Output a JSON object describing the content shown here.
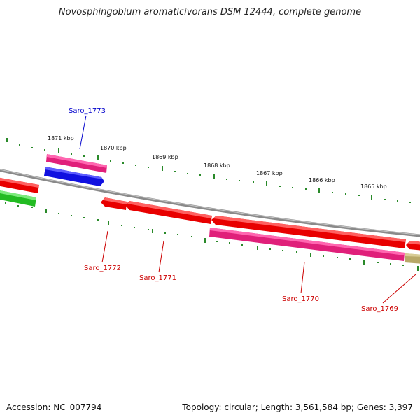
{
  "title": "Novosphingobium aromaticivorans DSM 12444, complete genome",
  "footer": {
    "accession": "Accession: NC_007794",
    "summary": "Topology: circular; Length: 3,561,584 bp; Genes: 3,397"
  },
  "ticks": [
    {
      "label": "1871 kbp"
    },
    {
      "label": "1870 kbp"
    },
    {
      "label": "1869 kbp"
    },
    {
      "label": "1868 kbp"
    },
    {
      "label": "1867 kbp"
    },
    {
      "label": "1866 kbp"
    },
    {
      "label": "1865 kbp"
    }
  ],
  "gene_labels": [
    {
      "name": "Saro_1773",
      "color": "#0000cc"
    },
    {
      "name": "Saro_1772",
      "color": "#cc0000"
    },
    {
      "name": "Saro_1771",
      "color": "#cc0000"
    },
    {
      "name": "Saro_1770",
      "color": "#cc0000"
    },
    {
      "name": "Saro_1769",
      "color": "#cc0000"
    }
  ],
  "colors": {
    "backbone": "#8a8a8a",
    "tick": "#2a8a2a",
    "gene_red": "#e80000",
    "gene_pink": "#e0207a",
    "gene_blue": "#1010e0",
    "gene_green": "#22bb22",
    "gene_tan": "#b8a868"
  }
}
